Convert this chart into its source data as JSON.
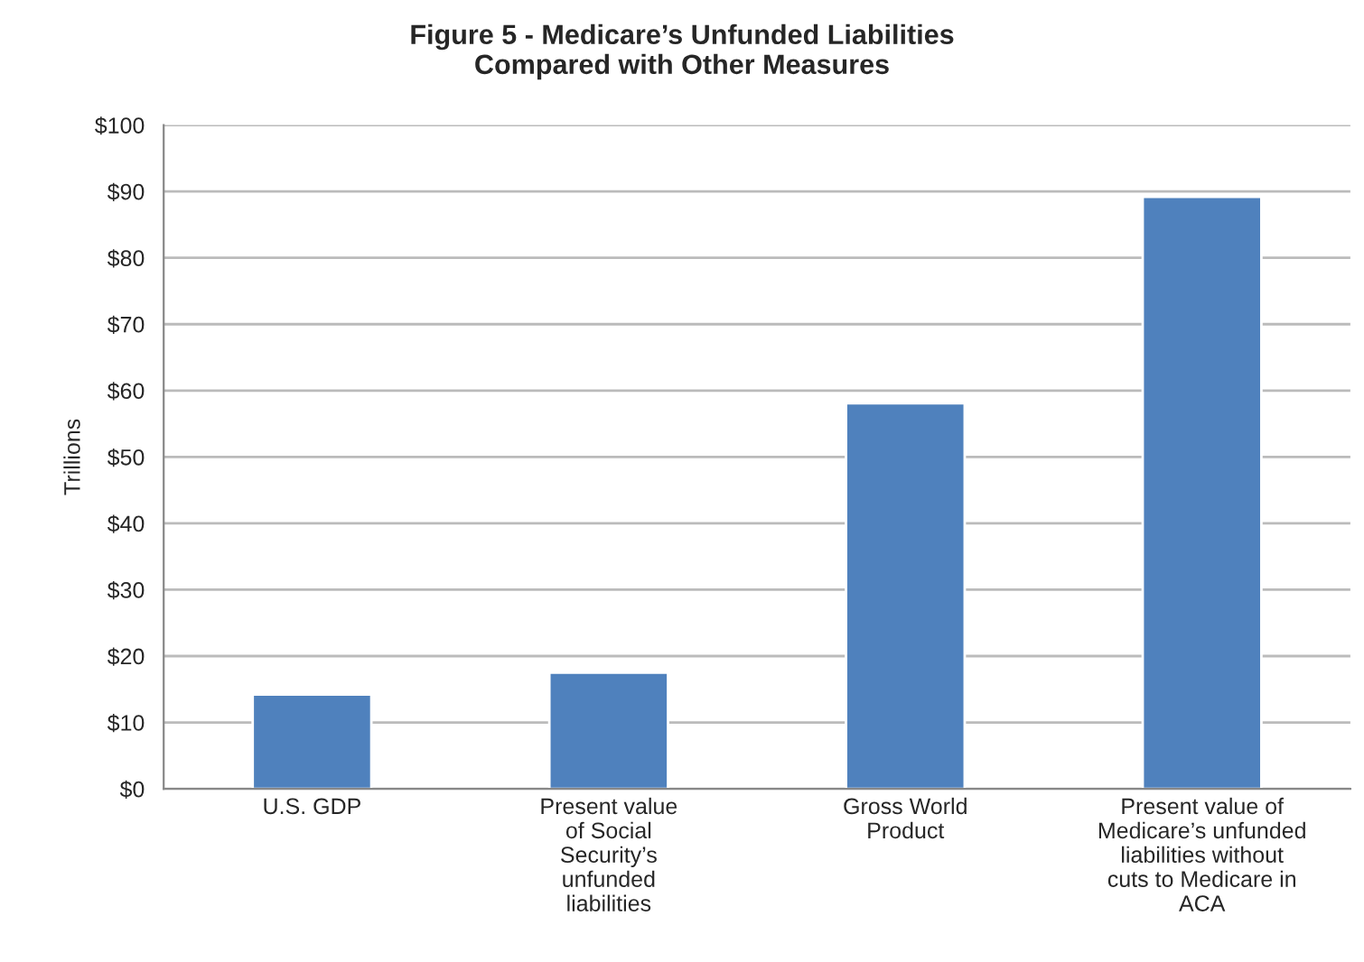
{
  "chart_data": {
    "type": "bar",
    "title": "Figure 5 - Medicare’s Unfunded Liabilities\nCompared with Other Measures",
    "ylabel": "Trillions",
    "categories": [
      "U.S. GDP",
      "Present value\nof Social\nSecurity’s\nunfunded\nliabilities",
      "Gross World\nProduct",
      "Present value of\nMedicare’s unfunded\nliabilities without\ncuts to Medicare in\nACA"
    ],
    "values": [
      14.2,
      17.5,
      58.1,
      89.2
    ],
    "color": "#4f81bd",
    "ylim": [
      0,
      100
    ],
    "yticks": [
      {
        "value": 0,
        "label": "$0"
      },
      {
        "value": 10,
        "label": "$10"
      },
      {
        "value": 20,
        "label": "$20"
      },
      {
        "value": 30,
        "label": "$30"
      },
      {
        "value": 40,
        "label": "$40"
      },
      {
        "value": 50,
        "label": "$50"
      },
      {
        "value": 60,
        "label": "$60"
      },
      {
        "value": 70,
        "label": "$70"
      },
      {
        "value": 80,
        "label": "$80"
      },
      {
        "value": 90,
        "label": "$90"
      },
      {
        "value": 100,
        "label": "$100"
      }
    ],
    "grid": "y",
    "legend": false
  }
}
